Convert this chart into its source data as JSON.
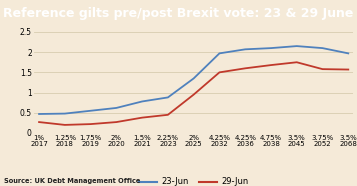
{
  "title": "Reference gilts pre/post Brexit vote: 23 & 29 June",
  "title_bg": "#6b1a2e",
  "title_color": "#ffffff",
  "bg_color": "#f5ead8",
  "plot_bg": "#f5ead8",
  "x_labels": [
    "1%\n2017",
    "1.25%\n2018",
    "1.75%\n2019",
    "2%\n2020",
    "1.5%\n2021",
    "2.25%\n2023",
    "2%\n2025",
    "4.25%\n2032",
    "4.25%\n2036",
    "4.75%\n2038",
    "3.5%\n2045",
    "3.75%\n2052",
    "3.5%\n2068"
  ],
  "line23_values": [
    0.47,
    0.48,
    0.55,
    0.62,
    0.78,
    0.88,
    1.35,
    1.97,
    2.07,
    2.1,
    2.15,
    2.1,
    1.97
  ],
  "line29_values": [
    0.27,
    0.2,
    0.22,
    0.27,
    0.38,
    0.45,
    0.95,
    1.5,
    1.6,
    1.68,
    1.75,
    1.58,
    1.57
  ],
  "line23_color": "#4f81bd",
  "line29_color": "#c0392b",
  "ylim": [
    0,
    2.6
  ],
  "yticks": [
    0,
    0.5,
    1.0,
    1.5,
    2.0,
    2.5
  ],
  "ytick_labels": [
    "0",
    "0.5",
    "1",
    "1.5",
    "2",
    "2.5"
  ],
  "source_text": "Source: UK Debt Management Office",
  "legend_23": "23-Jun",
  "legend_29": "29-Jun",
  "grid_color": "#d8cdb0",
  "title_fontsize": 9.0,
  "tick_fontsize": 5.0,
  "ytick_fontsize": 5.5
}
